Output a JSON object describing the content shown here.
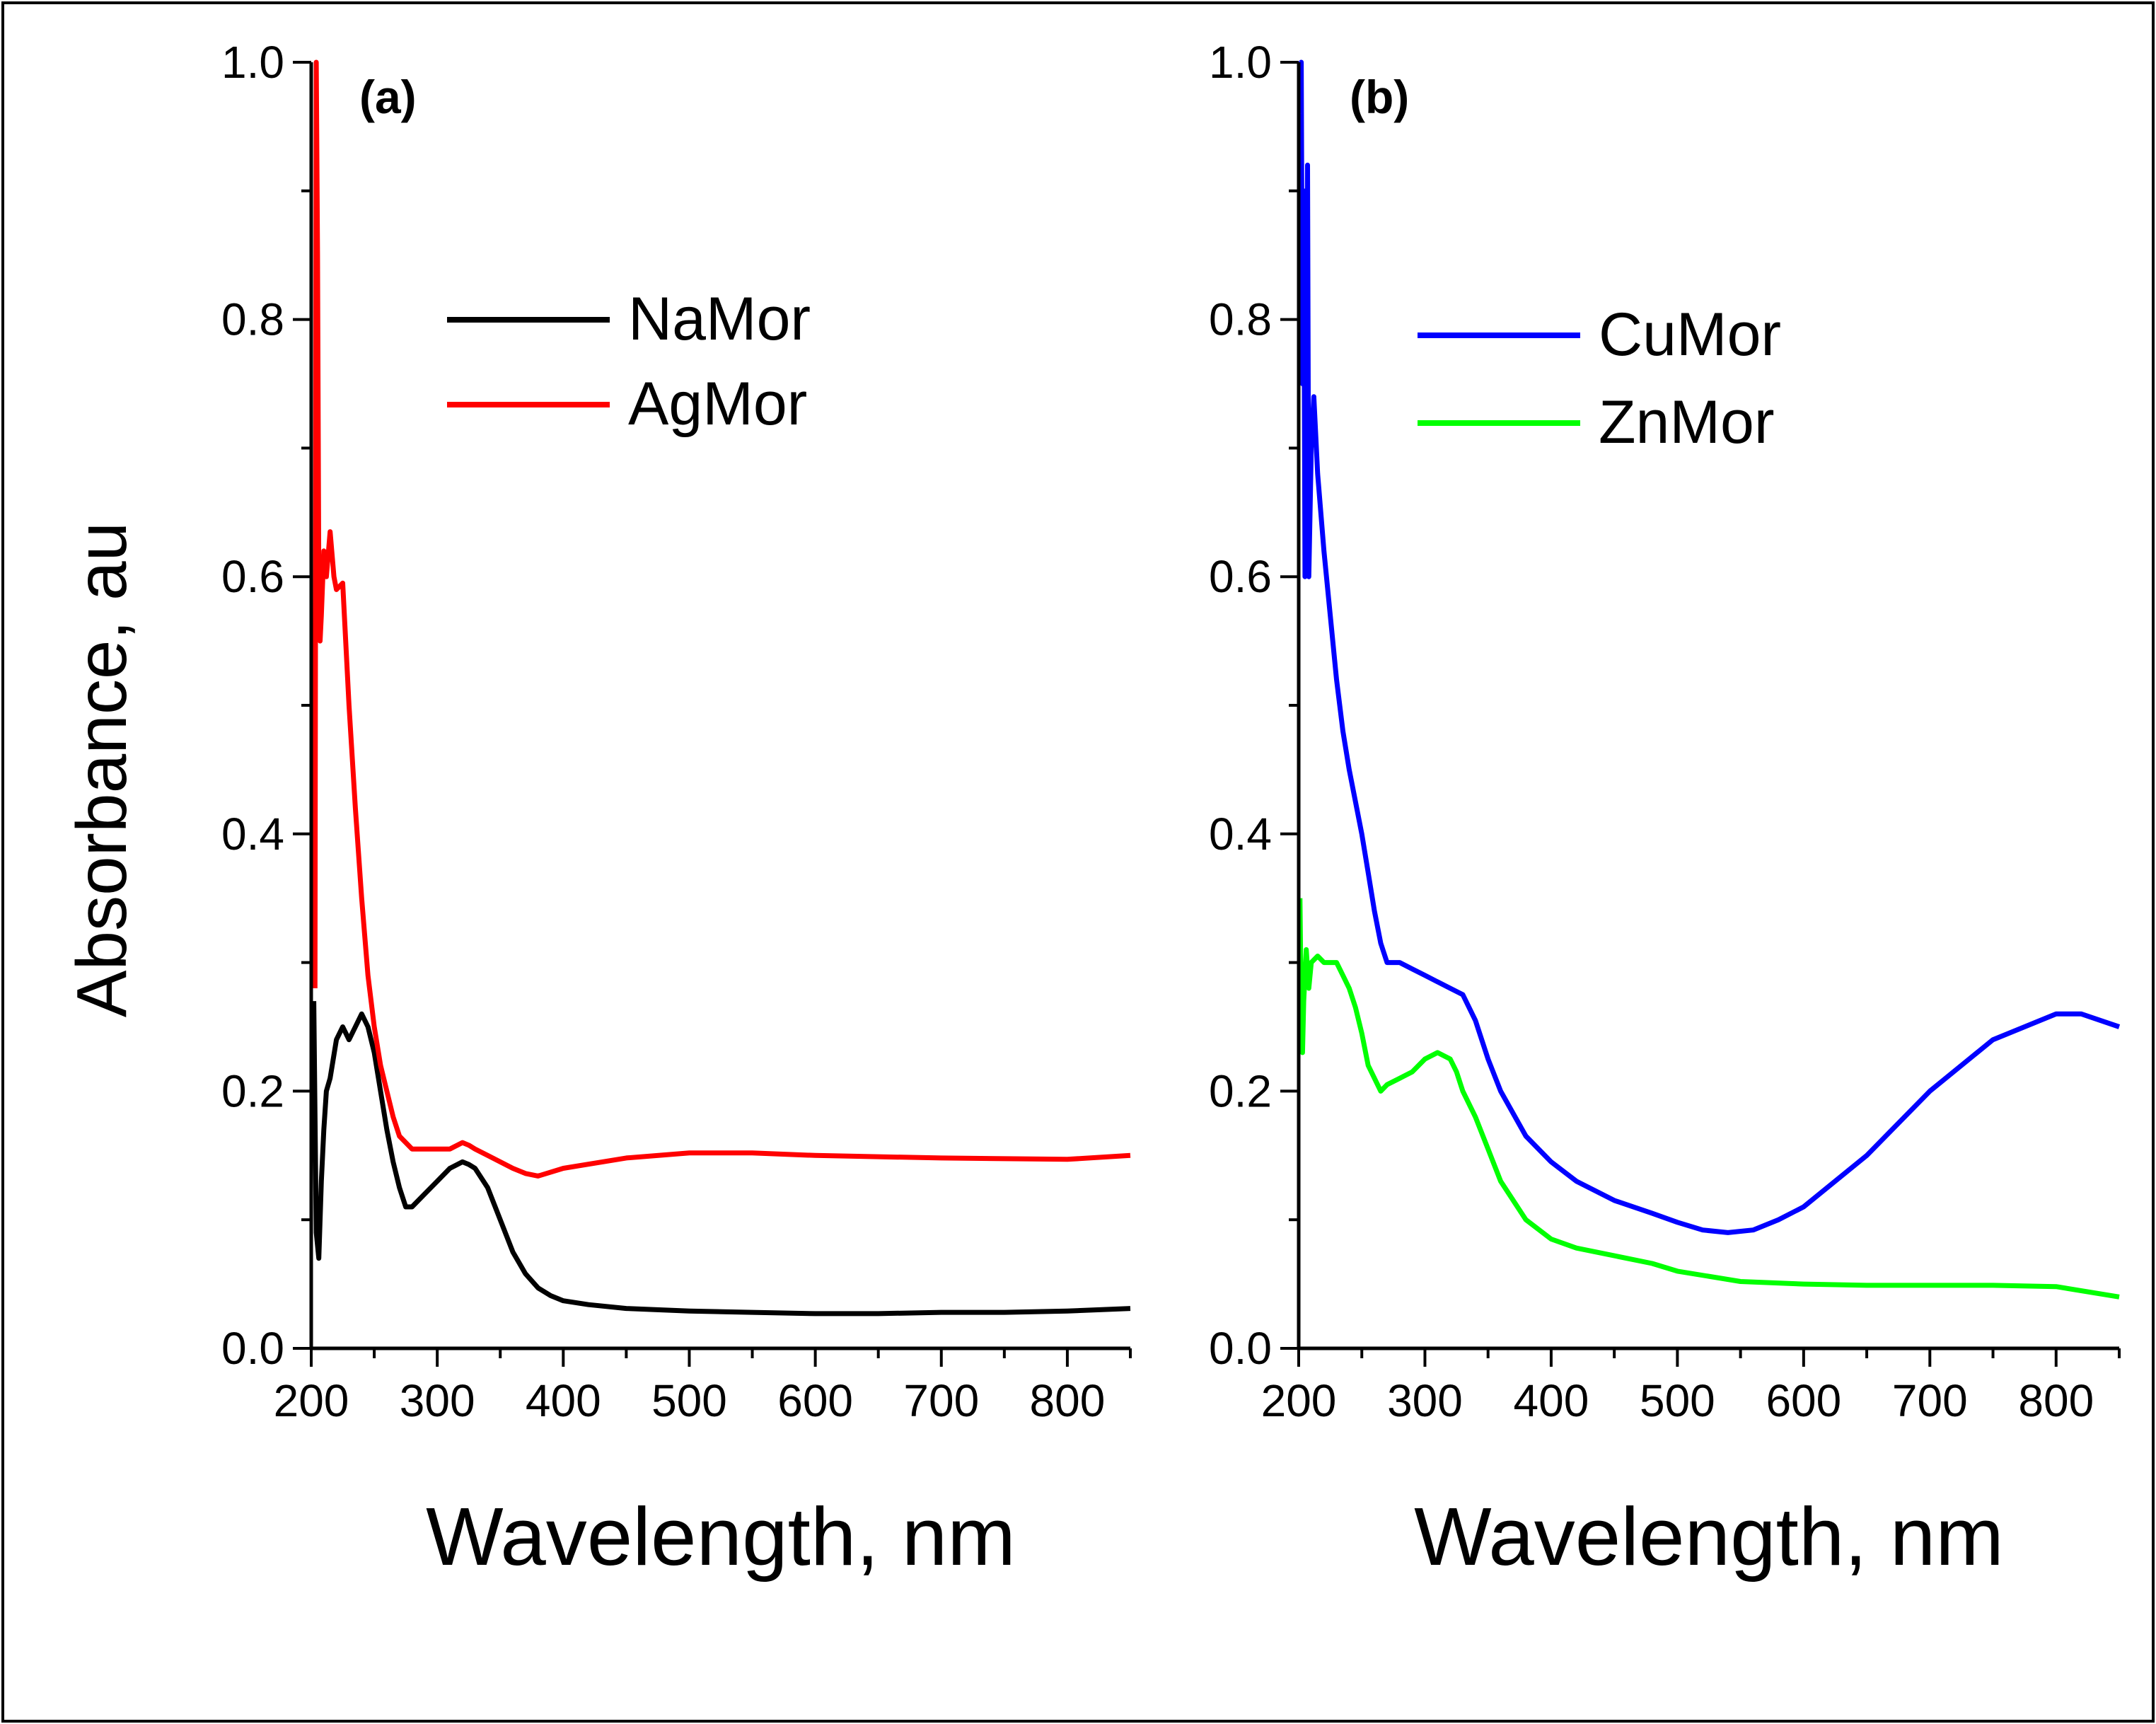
{
  "figure": {
    "shared_ylabel": "Absorbance, au"
  },
  "chart_data": [
    {
      "type": "line",
      "panel_label": "(a)",
      "xlabel": "Wavelength, nm",
      "ylabel": "Absorbance, au",
      "xlim": [
        200,
        850
      ],
      "ylim": [
        0.0,
        1.0
      ],
      "xticks": [
        200,
        300,
        400,
        500,
        600,
        700,
        800
      ],
      "xtick_labels": [
        "200",
        "300",
        "400",
        "500",
        "600",
        "700",
        "800"
      ],
      "yticks": [
        0.0,
        0.2,
        0.4,
        0.6,
        0.8,
        1.0
      ],
      "ytick_labels": [
        "0.0",
        "0.2",
        "0.4",
        "0.6",
        "0.8",
        "1.0"
      ],
      "legend_position": "upper-center",
      "series": [
        {
          "name": "NaMor",
          "color": "#000000",
          "x": [
            202,
            204,
            206,
            208,
            210,
            212,
            215,
            220,
            225,
            230,
            235,
            240,
            245,
            250,
            255,
            260,
            265,
            270,
            275,
            280,
            290,
            300,
            310,
            320,
            325,
            330,
            340,
            350,
            360,
            370,
            380,
            390,
            400,
            420,
            450,
            500,
            550,
            600,
            650,
            700,
            750,
            800,
            850
          ],
          "y": [
            0.27,
            0.09,
            0.07,
            0.13,
            0.17,
            0.2,
            0.21,
            0.24,
            0.25,
            0.24,
            0.25,
            0.26,
            0.25,
            0.23,
            0.2,
            0.17,
            0.145,
            0.125,
            0.11,
            0.11,
            0.12,
            0.13,
            0.14,
            0.145,
            0.143,
            0.14,
            0.125,
            0.1,
            0.075,
            0.058,
            0.047,
            0.041,
            0.037,
            0.034,
            0.031,
            0.029,
            0.028,
            0.027,
            0.027,
            0.028,
            0.028,
            0.029,
            0.031
          ]
        },
        {
          "name": "AgMor",
          "color": "#ff0000",
          "x": [
            203,
            204,
            205,
            206,
            207,
            208,
            210,
            212,
            215,
            218,
            220,
            225,
            230,
            235,
            240,
            245,
            250,
            255,
            260,
            265,
            270,
            280,
            290,
            300,
            310,
            320,
            325,
            330,
            340,
            350,
            360,
            370,
            380,
            400,
            450,
            500,
            550,
            600,
            700,
            800,
            850
          ],
          "y": [
            0.28,
            1.0,
            0.85,
            0.6,
            0.55,
            0.57,
            0.62,
            0.6,
            0.635,
            0.6,
            0.59,
            0.595,
            0.5,
            0.42,
            0.35,
            0.29,
            0.25,
            0.22,
            0.2,
            0.18,
            0.165,
            0.155,
            0.155,
            0.155,
            0.155,
            0.16,
            0.158,
            0.155,
            0.15,
            0.145,
            0.14,
            0.136,
            0.134,
            0.14,
            0.148,
            0.152,
            0.152,
            0.15,
            0.148,
            0.147,
            0.15
          ]
        }
      ]
    },
    {
      "type": "line",
      "panel_label": "(b)",
      "xlabel": "Wavelength, nm",
      "ylabel": "",
      "xlim": [
        200,
        850
      ],
      "ylim": [
        0.0,
        1.0
      ],
      "xticks": [
        200,
        300,
        400,
        500,
        600,
        700,
        800
      ],
      "xtick_labels": [
        "200",
        "300",
        "400",
        "500",
        "600",
        "700",
        "800"
      ],
      "yticks": [
        0.0,
        0.2,
        0.4,
        0.6,
        0.8,
        1.0
      ],
      "ytick_labels": [
        "0.0",
        "0.2",
        "0.4",
        "0.6",
        "0.8",
        "1.0"
      ],
      "legend_position": "upper-center",
      "series": [
        {
          "name": "CuMor",
          "color": "#0000ff",
          "x": [
            201,
            202,
            203,
            204,
            205,
            206,
            207,
            208,
            210,
            212,
            215,
            220,
            225,
            230,
            235,
            240,
            250,
            255,
            260,
            265,
            270,
            280,
            290,
            300,
            310,
            320,
            330,
            340,
            350,
            360,
            380,
            400,
            420,
            450,
            480,
            500,
            520,
            540,
            560,
            580,
            600,
            650,
            700,
            750,
            800,
            820,
            850
          ],
          "y": [
            0.96,
            1.0,
            0.75,
            0.9,
            0.6,
            0.7,
            0.92,
            0.6,
            0.7,
            0.74,
            0.68,
            0.62,
            0.57,
            0.52,
            0.48,
            0.45,
            0.4,
            0.37,
            0.34,
            0.315,
            0.3,
            0.3,
            0.295,
            0.29,
            0.285,
            0.28,
            0.275,
            0.255,
            0.225,
            0.2,
            0.165,
            0.145,
            0.13,
            0.115,
            0.105,
            0.098,
            0.092,
            0.09,
            0.092,
            0.1,
            0.11,
            0.15,
            0.2,
            0.24,
            0.26,
            0.26,
            0.25
          ]
        },
        {
          "name": "ZnMor",
          "color": "#00ff00",
          "x": [
            201,
            202,
            203,
            204,
            205,
            206,
            208,
            210,
            215,
            220,
            225,
            230,
            235,
            240,
            245,
            250,
            255,
            260,
            265,
            270,
            280,
            290,
            300,
            310,
            320,
            325,
            330,
            340,
            350,
            360,
            380,
            400,
            420,
            450,
            480,
            500,
            550,
            600,
            650,
            700,
            750,
            800,
            850
          ],
          "y": [
            0.35,
            0.26,
            0.23,
            0.27,
            0.29,
            0.31,
            0.28,
            0.3,
            0.305,
            0.3,
            0.3,
            0.3,
            0.29,
            0.28,
            0.265,
            0.245,
            0.22,
            0.21,
            0.2,
            0.205,
            0.21,
            0.215,
            0.225,
            0.23,
            0.225,
            0.215,
            0.2,
            0.18,
            0.155,
            0.13,
            0.1,
            0.085,
            0.078,
            0.072,
            0.066,
            0.06,
            0.052,
            0.05,
            0.049,
            0.049,
            0.049,
            0.048,
            0.04
          ]
        }
      ]
    }
  ]
}
